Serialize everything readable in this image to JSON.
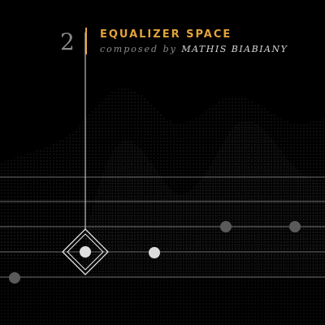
{
  "track": {
    "number": "2",
    "title": "EQUALIZER SPACE",
    "composed_by": "composed by",
    "composer": "MATHIS BIABIANY"
  },
  "colors": {
    "background": "#000000",
    "accent": "#e2a23a",
    "staff_line": "#6e6e6e",
    "note_dim": "#5a5a5a",
    "note_bright": "#dcdcdc"
  },
  "icons": {
    "playhead": "diamond-playhead-icon"
  }
}
